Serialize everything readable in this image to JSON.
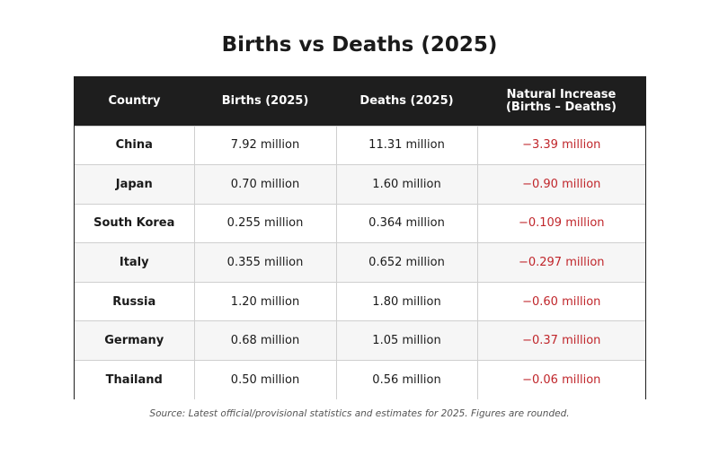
{
  "chart_data": {
    "type": "table",
    "title": "Births vs Deaths (2025)",
    "columns": [
      "Country",
      "Births (2025)",
      "Deaths (2025)",
      "Natural Increase\n(Births – Deaths)"
    ],
    "rows": [
      [
        "China",
        "7.92 million",
        "11.31 million",
        "−3.39 million"
      ],
      [
        "Japan",
        "0.70 million",
        "1.60 million",
        "−0.90 million"
      ],
      [
        "South Korea",
        "0.255 million",
        "0.364 million",
        "−0.109 million"
      ],
      [
        "Italy",
        "0.355 million",
        "0.652 million",
        "−0.297 million"
      ],
      [
        "Russia",
        "1.20 million",
        "1.80 million",
        "−0.60 million"
      ],
      [
        "Germany",
        "0.68 million",
        "1.05 million",
        "−0.37 million"
      ],
      [
        "Thailand",
        "0.50 million",
        "0.56 million",
        "−0.06 million"
      ]
    ],
    "source": "Source: Latest official/provisional statistics and estimates for 2025. Figures are rounded."
  },
  "colors": {
    "header_bg": "#1e1e1e",
    "header_text": "#ffffff",
    "negative_text": "#c0262b",
    "stripe": "#f6f6f6"
  }
}
